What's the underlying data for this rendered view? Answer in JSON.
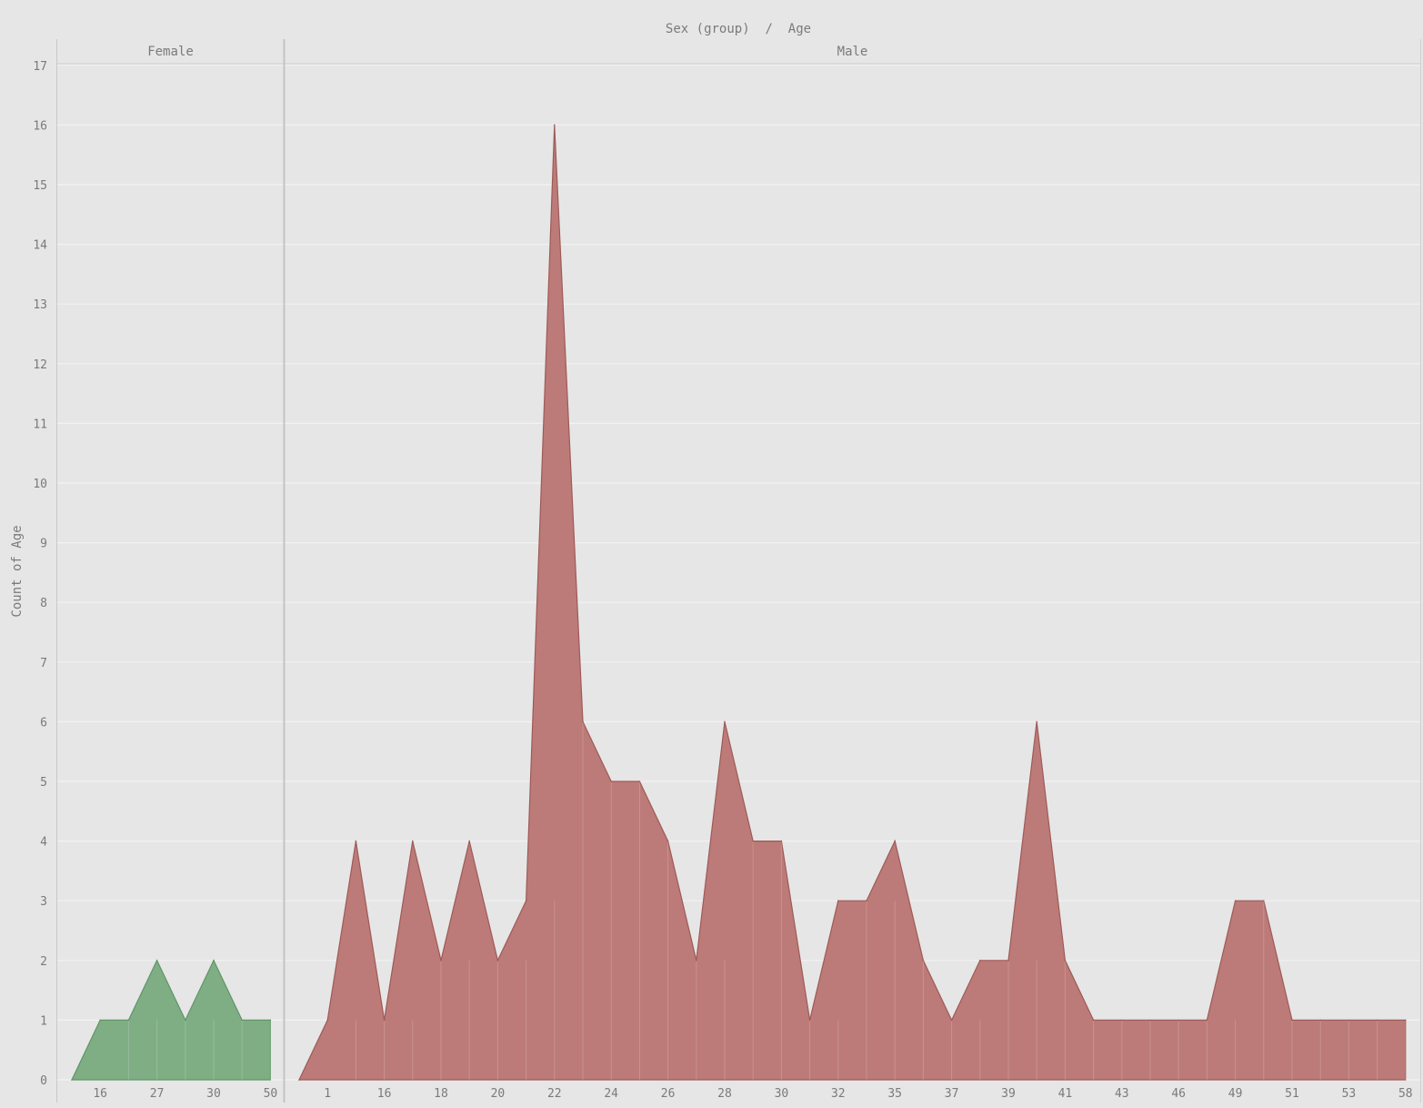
{
  "chart_data": {
    "type": "area",
    "title": "Sex (group)  /  Age",
    "ylabel": "Count of Age",
    "ylim": [
      0,
      17
    ],
    "yticks": [
      "0",
      "1",
      "2",
      "3",
      "4",
      "5",
      "6",
      "7",
      "8",
      "9",
      "10",
      "11",
      "12",
      "13",
      "14",
      "15",
      "16",
      "17"
    ],
    "grid": true,
    "colors": {
      "Female": "#7fae84",
      "Male": "#bc7b78",
      "Female_stroke": "#5f9466",
      "Male_stroke": "#9e5a57"
    },
    "panels": [
      {
        "name": "Female",
        "x_tick_labels": [
          "16",
          "27",
          "30",
          "50"
        ],
        "values": [
          0,
          1,
          1,
          2,
          1,
          2,
          1,
          1
        ]
      },
      {
        "name": "Male",
        "x_tick_labels": [
          "1",
          "16",
          "18",
          "20",
          "22",
          "24",
          "26",
          "28",
          "30",
          "32",
          "35",
          "37",
          "39",
          "41",
          "43",
          "46",
          "49",
          "51",
          "53",
          "58"
        ],
        "values": [
          0,
          1,
          4,
          1,
          4,
          2,
          4,
          2,
          3,
          16,
          6,
          5,
          5,
          4,
          2,
          6,
          4,
          4,
          1,
          3,
          3,
          4,
          2,
          1,
          2,
          2,
          6,
          2,
          1,
          1,
          1,
          1,
          1,
          3,
          3,
          1,
          1,
          1,
          1,
          1
        ]
      }
    ]
  }
}
